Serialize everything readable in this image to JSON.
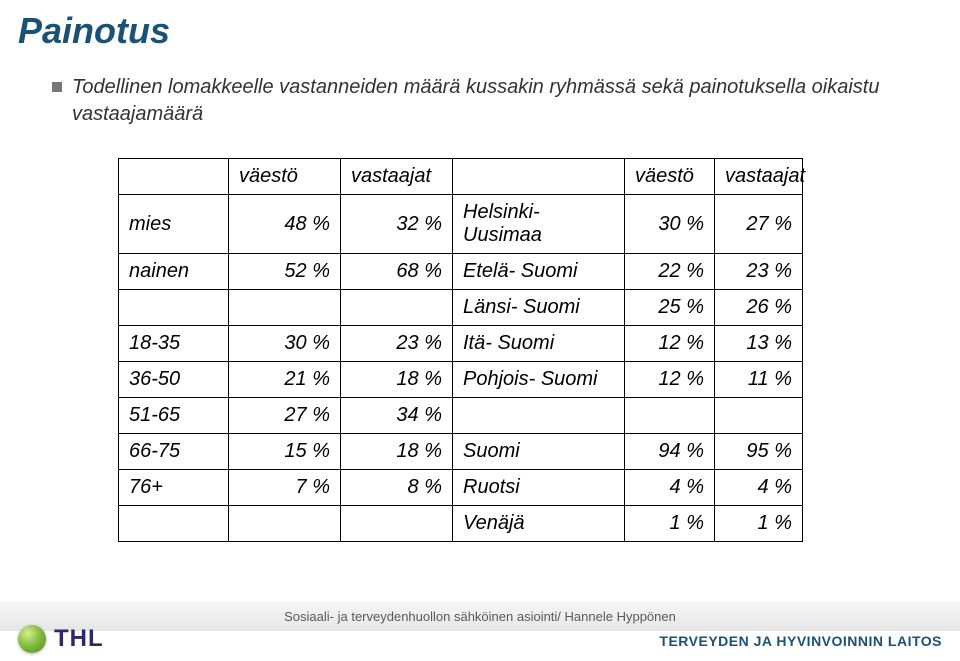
{
  "title": "Painotus",
  "bullet": "Todellinen lomakkeelle vastanneiden määrä kussakin ryhmässä sekä painotuksella oikaistu vastaajamäärä",
  "table": {
    "header_left_1": "väestö",
    "header_left_2": "vastaajat",
    "header_right_1": "väestö",
    "header_right_2": "vastaajat",
    "rows_left": [
      {
        "label": "mies",
        "v": "48 %",
        "a": "32 %"
      },
      {
        "label": "nainen",
        "v": "52 %",
        "a": "68 %"
      }
    ],
    "rows_left_age": [
      {
        "label": "18-35",
        "v": "30 %",
        "a": "23 %"
      },
      {
        "label": "36-50",
        "v": "21 %",
        "a": "18 %"
      },
      {
        "label": "51-65",
        "v": "27 %",
        "a": "34 %"
      },
      {
        "label": "66-75",
        "v": "15 %",
        "a": "18 %"
      },
      {
        "label": "76+",
        "v": "7 %",
        "a": "8 %"
      }
    ],
    "rows_right_region": [
      {
        "label": "Helsinki- Uusimaa",
        "v": "30 %",
        "a": "27 %"
      },
      {
        "label": "Etelä- Suomi",
        "v": "22 %",
        "a": "23 %"
      },
      {
        "label": "Länsi- Suomi",
        "v": "25 %",
        "a": "26 %"
      },
      {
        "label": "Itä- Suomi",
        "v": "12 %",
        "a": "13 %"
      },
      {
        "label": "Pohjois- Suomi",
        "v": "12 %",
        "a": "11 %"
      }
    ],
    "rows_right_country": [
      {
        "label": "Suomi",
        "v": "94 %",
        "a": "95 %"
      },
      {
        "label": "Ruotsi",
        "v": "4 %",
        "a": "4 %"
      },
      {
        "label": "Venäjä",
        "v": "1 %",
        "a": "1 %"
      }
    ]
  },
  "footer_center": "Sosiaali- ja terveydenhuollon sähköinen asiointi/ Hannele Hyppönen",
  "logo_left_text": "THL",
  "logo_right_text": "TERVEYDEN JA HYVINVOINNIN LAITOS",
  "colors": {
    "title": "#1a5276",
    "text": "#333333",
    "border": "#000000",
    "footer_text": "#595959",
    "logo_blue": "#2a2a6a",
    "logo_right": "#1a5276"
  }
}
